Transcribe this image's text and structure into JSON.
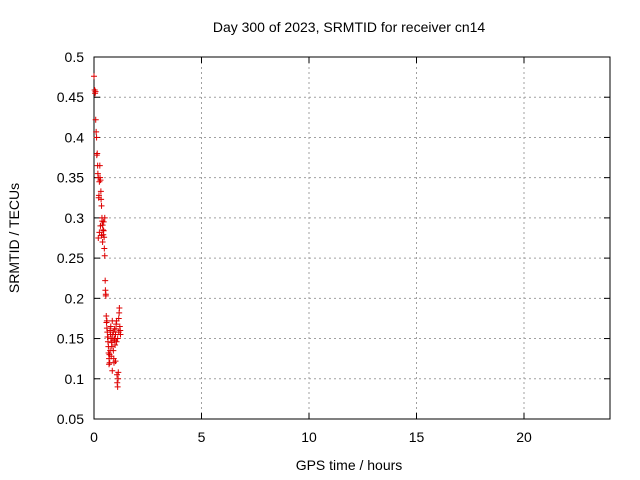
{
  "chart_data": {
    "type": "scatter",
    "title": "Day 300 of 2023, SRMTID for receiver cn14",
    "xlabel": "GPS time / hours",
    "ylabel": "SRMTID / TECUs",
    "xlim": [
      0,
      24
    ],
    "ylim": [
      0.05,
      0.5
    ],
    "xticks": [
      0,
      5,
      10,
      15,
      20
    ],
    "yticks": [
      0.05,
      0.1,
      0.15,
      0.2,
      0.25,
      0.3,
      0.35,
      0.4,
      0.45,
      0.5
    ],
    "xtick_labels": [
      "0",
      "5",
      "10",
      "15",
      "20"
    ],
    "ytick_labels": [
      "0.05",
      "0.1",
      "0.15",
      "0.2",
      "0.25",
      "0.3",
      "0.35",
      "0.4",
      "0.45",
      "0.5"
    ],
    "grid": true,
    "marker": "plus",
    "color": "#dd0000",
    "series": [
      {
        "points": [
          [
            0.0,
            0.476
          ],
          [
            0.03,
            0.459
          ],
          [
            0.05,
            0.455
          ],
          [
            0.07,
            0.457
          ],
          [
            0.08,
            0.422
          ],
          [
            0.1,
            0.407
          ],
          [
            0.12,
            0.4
          ],
          [
            0.13,
            0.378
          ],
          [
            0.15,
            0.38
          ],
          [
            0.17,
            0.365
          ],
          [
            0.18,
            0.355
          ],
          [
            0.2,
            0.35
          ],
          [
            0.22,
            0.325
          ],
          [
            0.23,
            0.328
          ],
          [
            0.25,
            0.345
          ],
          [
            0.27,
            0.365
          ],
          [
            0.28,
            0.35
          ],
          [
            0.3,
            0.347
          ],
          [
            0.32,
            0.333
          ],
          [
            0.33,
            0.323
          ],
          [
            0.35,
            0.315
          ],
          [
            0.37,
            0.3
          ],
          [
            0.38,
            0.296
          ],
          [
            0.4,
            0.291
          ],
          [
            0.42,
            0.285
          ],
          [
            0.43,
            0.279
          ],
          [
            0.45,
            0.284
          ],
          [
            0.47,
            0.276
          ],
          [
            0.48,
            0.262
          ],
          [
            0.5,
            0.253
          ],
          [
            0.52,
            0.222
          ],
          [
            0.53,
            0.21
          ],
          [
            0.55,
            0.203
          ],
          [
            0.57,
            0.178
          ],
          [
            0.58,
            0.17
          ],
          [
            0.6,
            0.163
          ],
          [
            0.62,
            0.158
          ],
          [
            0.63,
            0.152
          ],
          [
            0.65,
            0.146
          ],
          [
            0.67,
            0.14
          ],
          [
            0.68,
            0.132
          ],
          [
            0.7,
            0.125
          ],
          [
            0.72,
            0.13
          ],
          [
            0.73,
            0.12
          ],
          [
            0.75,
            0.16
          ],
          [
            0.77,
            0.155
          ],
          [
            0.78,
            0.165
          ],
          [
            0.8,
            0.15
          ],
          [
            0.82,
            0.145
          ],
          [
            0.83,
            0.14
          ],
          [
            0.85,
            0.172
          ],
          [
            0.87,
            0.155
          ],
          [
            0.88,
            0.148
          ],
          [
            0.9,
            0.135
          ],
          [
            0.92,
            0.125
          ],
          [
            0.93,
            0.12
          ],
          [
            0.95,
            0.15
          ],
          [
            0.97,
            0.148
          ],
          [
            0.98,
            0.142
          ],
          [
            1.0,
            0.155
          ],
          [
            1.02,
            0.162
          ],
          [
            1.03,
            0.168
          ],
          [
            1.05,
            0.172
          ],
          [
            1.07,
            0.105
          ],
          [
            1.08,
            0.095
          ],
          [
            1.1,
            0.09
          ],
          [
            1.12,
            0.1
          ],
          [
            1.13,
            0.108
          ],
          [
            1.15,
            0.175
          ],
          [
            1.17,
            0.182
          ],
          [
            1.18,
            0.188
          ],
          [
            1.2,
            0.165
          ],
          [
            1.22,
            0.16
          ],
          [
            1.23,
            0.155
          ],
          [
            0.2,
            0.275
          ],
          [
            0.25,
            0.282
          ],
          [
            0.3,
            0.29
          ],
          [
            0.35,
            0.278
          ],
          [
            0.45,
            0.295
          ],
          [
            0.6,
            0.172
          ],
          [
            0.7,
            0.118
          ],
          [
            0.8,
            0.128
          ],
          [
            0.9,
            0.158
          ],
          [
            1.0,
            0.122
          ],
          [
            1.1,
            0.15
          ],
          [
            0.55,
            0.205
          ],
          [
            0.4,
            0.27
          ],
          [
            0.5,
            0.3
          ],
          [
            0.65,
            0.152
          ],
          [
            0.75,
            0.135
          ],
          [
            0.85,
            0.11
          ],
          [
            0.95,
            0.162
          ],
          [
            1.05,
            0.146
          ],
          [
            1.15,
            0.158
          ]
        ]
      }
    ]
  }
}
